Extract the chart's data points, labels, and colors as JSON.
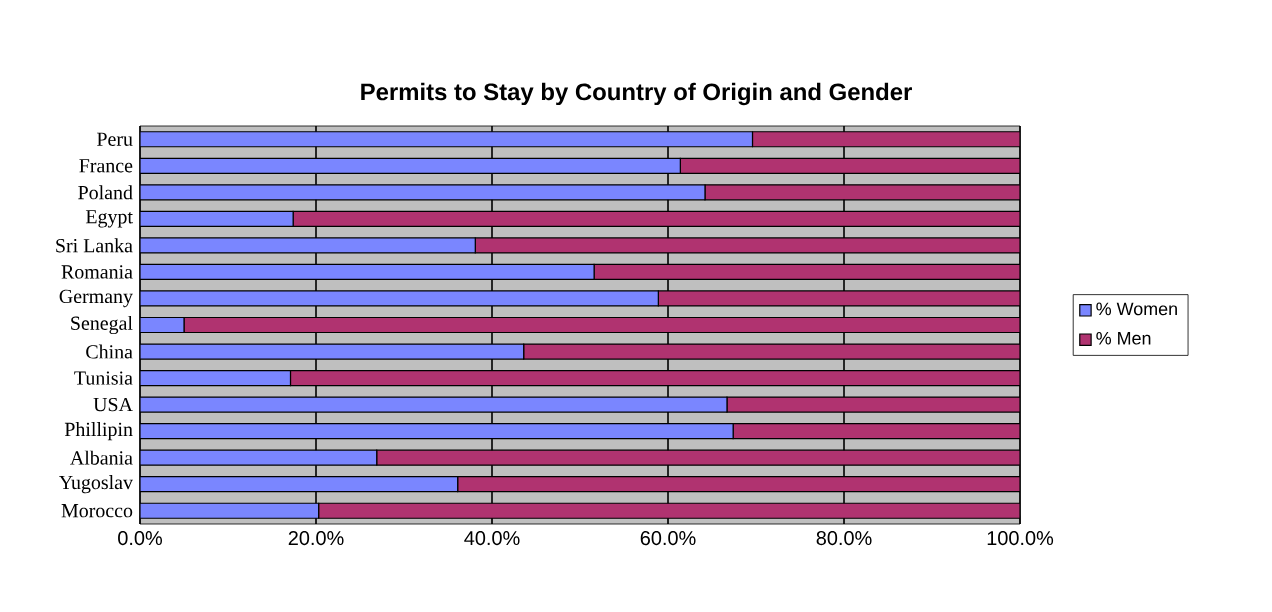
{
  "chart_data": {
    "type": "bar",
    "orientation": "horizontal",
    "stacked": true,
    "title": "Permits to Stay by Country of Origin and Gender",
    "categories": [
      "Peru",
      "France",
      "Poland",
      "Egypt",
      "Sri Lanka",
      "Romania",
      "Germany",
      "Senegal",
      "China",
      "Tunisia",
      "USA",
      "Phillipin",
      "Albania",
      "Yugoslav",
      "Morocco"
    ],
    "series": [
      {
        "name": "% Women",
        "color": "#7a86ff",
        "values": [
          69.6,
          61.4,
          64.2,
          17.4,
          38.1,
          51.6,
          58.9,
          5.0,
          43.6,
          17.1,
          66.7,
          67.4,
          26.9,
          36.1,
          20.3
        ]
      },
      {
        "name": "% Men",
        "color": "#b03370",
        "values": [
          30.4,
          38.6,
          35.8,
          82.6,
          61.9,
          48.4,
          41.1,
          95.0,
          56.4,
          82.9,
          33.3,
          32.6,
          73.1,
          63.9,
          79.7
        ]
      }
    ],
    "xlim": [
      0,
      100
    ],
    "xticks": [
      {
        "value": 0,
        "label": "0.0%"
      },
      {
        "value": 20,
        "label": "20.0%"
      },
      {
        "value": 40,
        "label": "40.0%"
      },
      {
        "value": 60,
        "label": "60.0%"
      },
      {
        "value": 80,
        "label": "80.0%"
      },
      {
        "value": 100,
        "label": "100.0%"
      }
    ],
    "grid": "x",
    "legend": "right"
  }
}
